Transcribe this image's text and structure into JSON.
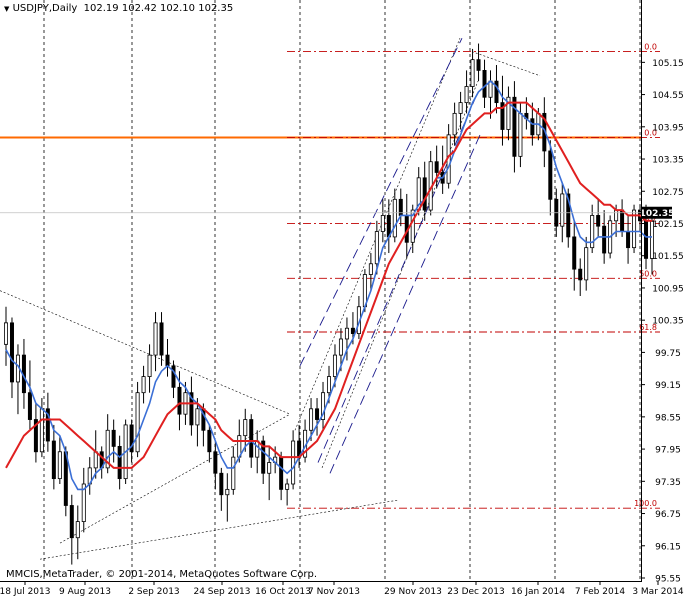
{
  "header": {
    "symbol": "USDJPY,Daily",
    "open": "102.19",
    "high": "102.42",
    "low": "102.10",
    "close": "102.35"
  },
  "copyright": "MMCIS,MetaTrader, © 2001-2014, MetaQuotes Software Corp.",
  "chart_data": {
    "type": "candlestick",
    "symbol": "USDJPY",
    "timeframe": "Daily",
    "ylim": [
      95.55,
      106.05
    ],
    "y_ticks": [
      "105.15",
      "104.55",
      "103.95",
      "103.35",
      "102.75",
      "102.15",
      "101.55",
      "100.95",
      "100.35",
      "99.75",
      "99.15",
      "98.55",
      "97.95",
      "97.35",
      "96.75",
      "96.15",
      "95.55"
    ],
    "x_ticks": [
      "18 Jul 2013",
      "9 Aug 2013",
      "2 Sep 2013",
      "24 Sep 2013",
      "16 Oct 2013",
      "7 Nov 2013",
      "29 Nov 2013",
      "23 Dec 2013",
      "16 Jan 2014",
      "7 Feb 2014",
      "3 Mar 2014"
    ],
    "current_price": "102.35",
    "horizontal_line": 103.75,
    "fibonacci": [
      {
        "label": "0.0",
        "price": 105.35
      },
      {
        "label": "0.0",
        "price": 103.75
      },
      {
        "label": "38.2",
        "price": 102.15
      },
      {
        "label": "50.0",
        "price": 101.13
      },
      {
        "label": "61.8",
        "price": 100.13
      },
      {
        "label": "100.0",
        "price": 96.85
      }
    ],
    "grid": true,
    "candles": [
      [
        99.9,
        100.6,
        99.5,
        100.3
      ],
      [
        100.3,
        100.4,
        98.9,
        99.2
      ],
      [
        99.2,
        99.9,
        98.6,
        99.7
      ],
      [
        99.7,
        100.0,
        98.7,
        99.0
      ],
      [
        99.0,
        99.6,
        98.3,
        98.5
      ],
      [
        98.5,
        98.8,
        97.7,
        97.9
      ],
      [
        97.9,
        98.9,
        97.8,
        98.7
      ],
      [
        98.7,
        99.0,
        97.9,
        98.1
      ],
      [
        98.1,
        98.4,
        97.2,
        97.4
      ],
      [
        97.4,
        98.2,
        97.3,
        97.9
      ],
      [
        97.9,
        98.0,
        96.7,
        96.9
      ],
      [
        96.9,
        97.1,
        95.8,
        96.3
      ],
      [
        96.3,
        96.9,
        95.9,
        96.6
      ],
      [
        96.6,
        97.6,
        96.4,
        97.3
      ],
      [
        97.3,
        97.8,
        97.1,
        97.6
      ],
      [
        97.6,
        98.3,
        97.4,
        97.9
      ],
      [
        97.9,
        98.0,
        97.4,
        97.6
      ],
      [
        97.6,
        98.6,
        97.5,
        98.3
      ],
      [
        98.3,
        98.5,
        97.7,
        98.0
      ],
      [
        98.0,
        98.2,
        97.2,
        97.4
      ],
      [
        97.4,
        98.5,
        97.3,
        98.4
      ],
      [
        98.4,
        98.5,
        97.7,
        97.9
      ],
      [
        97.9,
        99.2,
        97.8,
        99.0
      ],
      [
        99.0,
        99.5,
        98.8,
        99.3
      ],
      [
        99.3,
        99.9,
        99.0,
        99.7
      ],
      [
        99.7,
        100.5,
        99.4,
        100.3
      ],
      [
        100.3,
        100.5,
        99.5,
        99.7
      ],
      [
        99.7,
        100.0,
        99.3,
        99.5
      ],
      [
        99.5,
        99.6,
        98.9,
        99.1
      ],
      [
        99.1,
        99.4,
        98.3,
        98.6
      ],
      [
        98.6,
        99.2,
        98.4,
        99.0
      ],
      [
        99.0,
        99.3,
        98.2,
        98.4
      ],
      [
        98.4,
        98.9,
        98.0,
        98.7
      ],
      [
        98.7,
        98.8,
        98.0,
        98.3
      ],
      [
        98.3,
        98.4,
        97.7,
        97.9
      ],
      [
        97.9,
        98.1,
        97.2,
        97.5
      ],
      [
        97.5,
        97.6,
        96.8,
        97.1
      ],
      [
        97.1,
        97.5,
        96.6,
        97.2
      ],
      [
        97.2,
        98.0,
        97.1,
        97.8
      ],
      [
        97.8,
        98.5,
        97.7,
        98.2
      ],
      [
        98.2,
        98.7,
        97.9,
        98.5
      ],
      [
        98.5,
        98.6,
        97.6,
        97.8
      ],
      [
        97.8,
        98.3,
        97.5,
        98.1
      ],
      [
        98.1,
        98.2,
        97.3,
        97.5
      ],
      [
        97.5,
        98.0,
        97.0,
        97.7
      ],
      [
        97.7,
        98.0,
        97.5,
        97.8
      ],
      [
        97.8,
        97.9,
        97.0,
        97.2
      ],
      [
        97.2,
        97.4,
        96.9,
        97.3
      ],
      [
        97.3,
        98.3,
        97.2,
        98.1
      ],
      [
        98.1,
        98.4,
        97.6,
        97.8
      ],
      [
        97.8,
        98.5,
        97.7,
        98.3
      ],
      [
        98.3,
        98.9,
        98.1,
        98.7
      ],
      [
        98.7,
        98.9,
        98.2,
        98.5
      ],
      [
        98.5,
        99.2,
        98.3,
        99.0
      ],
      [
        99.0,
        99.5,
        98.8,
        99.3
      ],
      [
        99.3,
        99.9,
        99.1,
        99.7
      ],
      [
        99.7,
        100.2,
        99.4,
        100.0
      ],
      [
        100.0,
        100.4,
        99.6,
        100.2
      ],
      [
        100.2,
        100.5,
        99.9,
        100.1
      ],
      [
        100.1,
        100.8,
        100.0,
        100.6
      ],
      [
        100.6,
        101.3,
        100.5,
        101.2
      ],
      [
        101.2,
        101.6,
        100.9,
        101.4
      ],
      [
        101.4,
        102.2,
        101.2,
        102.0
      ],
      [
        102.0,
        102.6,
        101.8,
        102.3
      ],
      [
        102.3,
        102.6,
        101.6,
        101.9
      ],
      [
        101.9,
        102.8,
        101.8,
        102.6
      ],
      [
        102.6,
        102.8,
        102.1,
        102.3
      ],
      [
        102.3,
        102.7,
        101.5,
        101.8
      ],
      [
        101.8,
        102.5,
        101.6,
        102.4
      ],
      [
        102.4,
        103.2,
        102.3,
        103.0
      ],
      [
        103.0,
        103.3,
        102.2,
        102.4
      ],
      [
        102.4,
        103.5,
        102.3,
        103.3
      ],
      [
        103.3,
        103.6,
        102.8,
        103.1
      ],
      [
        103.1,
        103.6,
        102.7,
        102.9
      ],
      [
        102.9,
        104.0,
        102.8,
        103.8
      ],
      [
        103.8,
        104.4,
        103.6,
        104.2
      ],
      [
        104.2,
        104.6,
        103.9,
        104.4
      ],
      [
        104.4,
        105.0,
        104.2,
        104.7
      ],
      [
        104.7,
        105.4,
        104.5,
        105.2
      ],
      [
        105.2,
        105.5,
        104.8,
        105.0
      ],
      [
        105.0,
        105.2,
        104.3,
        104.5
      ],
      [
        104.5,
        105.0,
        104.1,
        104.8
      ],
      [
        104.8,
        105.1,
        104.2,
        104.4
      ],
      [
        104.4,
        104.9,
        103.6,
        103.9
      ],
      [
        103.9,
        104.7,
        103.7,
        104.5
      ],
      [
        104.5,
        104.8,
        103.1,
        103.4
      ],
      [
        103.4,
        104.4,
        103.2,
        104.2
      ],
      [
        104.2,
        104.5,
        103.9,
        104.1
      ],
      [
        104.1,
        104.4,
        103.6,
        103.8
      ],
      [
        103.8,
        104.3,
        103.7,
        104.2
      ],
      [
        104.2,
        104.5,
        103.2,
        103.5
      ],
      [
        103.5,
        103.7,
        102.3,
        102.6
      ],
      [
        102.6,
        102.8,
        101.9,
        102.1
      ],
      [
        102.1,
        102.9,
        101.8,
        102.7
      ],
      [
        102.7,
        102.8,
        101.7,
        101.9
      ],
      [
        101.9,
        102.2,
        100.9,
        101.3
      ],
      [
        101.3,
        101.5,
        100.8,
        101.1
      ],
      [
        101.1,
        101.9,
        100.9,
        101.7
      ],
      [
        101.7,
        102.5,
        101.6,
        102.3
      ],
      [
        102.3,
        102.6,
        101.9,
        102.1
      ],
      [
        102.1,
        102.4,
        101.4,
        101.6
      ],
      [
        101.6,
        102.3,
        101.5,
        102.2
      ],
      [
        102.2,
        102.5,
        101.9,
        102.4
      ],
      [
        102.4,
        102.6,
        101.9,
        102.0
      ],
      [
        102.0,
        102.3,
        101.4,
        101.7
      ],
      [
        101.7,
        102.5,
        101.6,
        102.4
      ],
      [
        102.4,
        102.5,
        102.0,
        102.2
      ],
      [
        102.2,
        102.5,
        101.3,
        101.5
      ],
      [
        101.5,
        102.4,
        101.2,
        102.19
      ]
    ],
    "series": [
      {
        "color": "#3b6fd6",
        "values": [
          99.8,
          99.6,
          99.5,
          99.3,
          99.1,
          98.8,
          98.7,
          98.6,
          98.3,
          98.2,
          97.9,
          97.4,
          97.2,
          97.2,
          97.3,
          97.5,
          97.6,
          97.8,
          97.9,
          97.8,
          97.9,
          98.0,
          98.2,
          98.5,
          98.8,
          99.2,
          99.4,
          99.5,
          99.4,
          99.2,
          99.1,
          98.9,
          98.8,
          98.6,
          98.4,
          98.1,
          97.8,
          97.6,
          97.6,
          97.8,
          98.0,
          98.1,
          98.0,
          97.9,
          97.8,
          97.7,
          97.6,
          97.5,
          97.6,
          97.8,
          98.0,
          98.2,
          98.4,
          98.6,
          98.9,
          99.2,
          99.5,
          99.8,
          100.0,
          100.3,
          100.6,
          100.9,
          101.3,
          101.7,
          101.9,
          102.1,
          102.3,
          102.3,
          102.3,
          102.5,
          102.6,
          102.8,
          103.0,
          103.0,
          103.2,
          103.5,
          103.8,
          104.1,
          104.4,
          104.6,
          104.7,
          104.8,
          104.7,
          104.5,
          104.4,
          104.3,
          104.2,
          104.1,
          104.0,
          104.0,
          103.9,
          103.6,
          103.2,
          102.9,
          102.6,
          102.2,
          101.9,
          101.8,
          101.8,
          101.9,
          101.9,
          101.9,
          102.0,
          102.0,
          102.0,
          102.0,
          102.0,
          101.9,
          101.9
        ]
      },
      {
        "color": "#e02020",
        "values": [
          97.6,
          97.8,
          98.0,
          98.2,
          98.3,
          98.4,
          98.5,
          98.5,
          98.5,
          98.5,
          98.4,
          98.3,
          98.2,
          98.1,
          98.0,
          97.9,
          97.8,
          97.7,
          97.6,
          97.6,
          97.6,
          97.6,
          97.7,
          97.8,
          98.0,
          98.2,
          98.4,
          98.6,
          98.7,
          98.8,
          98.8,
          98.8,
          98.8,
          98.7,
          98.6,
          98.5,
          98.3,
          98.2,
          98.1,
          98.1,
          98.1,
          98.1,
          98.1,
          98.0,
          98.0,
          97.9,
          97.8,
          97.8,
          97.8,
          97.8,
          97.9,
          98.0,
          98.1,
          98.3,
          98.5,
          98.7,
          99.0,
          99.3,
          99.6,
          99.9,
          100.2,
          100.5,
          100.8,
          101.1,
          101.4,
          101.6,
          101.8,
          102.0,
          102.2,
          102.4,
          102.6,
          102.8,
          103.0,
          103.2,
          103.4,
          103.5,
          103.7,
          103.9,
          104.0,
          104.1,
          104.2,
          104.2,
          104.3,
          104.3,
          104.4,
          104.4,
          104.4,
          104.4,
          104.3,
          104.2,
          104.1,
          103.9,
          103.7,
          103.5,
          103.3,
          103.1,
          102.9,
          102.8,
          102.7,
          102.6,
          102.5,
          102.5,
          102.4,
          102.4,
          102.3,
          102.3,
          102.3,
          102.2,
          102.2
        ]
      }
    ]
  }
}
